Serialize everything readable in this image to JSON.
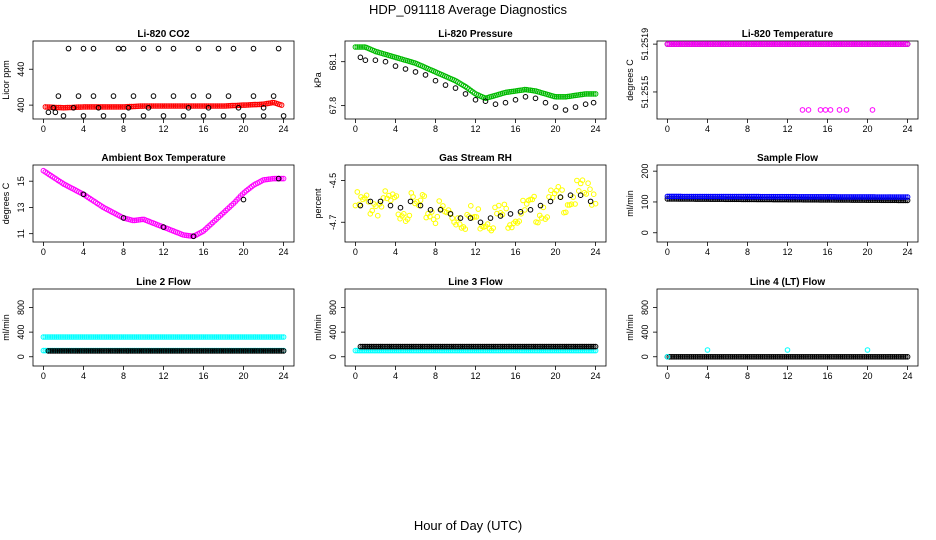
{
  "page": {
    "title": "HDP_091118  Average Diagnostics",
    "x_axis_title": "Hour of Day (UTC)"
  },
  "chart_data": [
    {
      "type": "scatter",
      "title": "Li-820 CO2",
      "ylabel": "Licor ppm",
      "xlim": [
        0,
        24
      ],
      "ylim": [
        388,
        468
      ],
      "xticks": [
        0,
        4,
        8,
        12,
        16,
        20,
        24
      ],
      "yticks": [
        400,
        440
      ],
      "series": [
        {
          "color": "#ff0000",
          "dense": true,
          "points": [
            [
              0.2,
              398
            ],
            [
              2,
              397
            ],
            [
              4,
              398
            ],
            [
              6,
              398
            ],
            [
              8,
              398
            ],
            [
              10,
              399
            ],
            [
              12,
              399
            ],
            [
              14,
              399
            ],
            [
              16,
              399
            ],
            [
              18,
              399
            ],
            [
              20,
              400
            ],
            [
              22,
              401
            ],
            [
              23,
              403
            ],
            [
              23.8,
              400
            ]
          ]
        },
        {
          "color": "#000000",
          "dense": false,
          "points": [
            [
              0.5,
              392
            ],
            [
              1.2,
              392
            ],
            [
              2.5,
              463
            ],
            [
              4,
              463
            ],
            [
              5,
              463
            ],
            [
              7.5,
              463
            ],
            [
              8,
              463
            ],
            [
              10,
              463
            ],
            [
              11.5,
              463
            ],
            [
              13,
              463
            ],
            [
              15.5,
              463
            ],
            [
              17.5,
              463
            ],
            [
              19,
              463
            ],
            [
              21,
              463
            ],
            [
              23.5,
              463
            ],
            [
              1.5,
              410
            ],
            [
              3.5,
              410
            ],
            [
              5,
              410
            ],
            [
              7,
              410
            ],
            [
              9,
              410
            ],
            [
              11,
              410
            ],
            [
              13,
              410
            ],
            [
              15,
              410
            ],
            [
              16.5,
              410
            ],
            [
              18.5,
              410
            ],
            [
              21,
              410
            ],
            [
              23,
              410
            ],
            [
              1,
              397
            ],
            [
              3,
              397
            ],
            [
              5.5,
              397
            ],
            [
              8.5,
              397
            ],
            [
              10.5,
              397
            ],
            [
              14.5,
              397
            ],
            [
              16.5,
              397
            ],
            [
              19.5,
              397
            ],
            [
              22,
              397
            ],
            [
              2,
              388
            ],
            [
              4,
              388
            ],
            [
              6,
              388
            ],
            [
              8,
              388
            ],
            [
              10,
              388
            ],
            [
              12,
              388
            ],
            [
              14,
              388
            ],
            [
              16,
              388
            ],
            [
              18,
              388
            ],
            [
              20,
              388
            ],
            [
              22,
              388
            ],
            [
              24,
              388
            ]
          ]
        }
      ]
    },
    {
      "type": "scatter",
      "title": "Li-820 Pressure",
      "ylabel": "kPa",
      "xlim": [
        0,
        24
      ],
      "ylim": [
        67.73,
        68.22
      ],
      "xticks": [
        0,
        4,
        8,
        12,
        16,
        20,
        24
      ],
      "yticks": [
        67.8,
        68.1
      ],
      "series": [
        {
          "color": "#00bb00",
          "dense": true,
          "points": [
            [
              0,
              68.2
            ],
            [
              1,
              68.2
            ],
            [
              2,
              68.17
            ],
            [
              3,
              68.15
            ],
            [
              4,
              68.13
            ],
            [
              5,
              68.11
            ],
            [
              6,
              68.09
            ],
            [
              7,
              68.06
            ],
            [
              8,
              68.03
            ],
            [
              9,
              68.0
            ],
            [
              10,
              67.97
            ],
            [
              11,
              67.93
            ],
            [
              12,
              67.88
            ],
            [
              13,
              67.85
            ],
            [
              14,
              67.87
            ],
            [
              15,
              67.89
            ],
            [
              16,
              67.9
            ],
            [
              17,
              67.91
            ],
            [
              18,
              67.9
            ],
            [
              19,
              67.88
            ],
            [
              20,
              67.86
            ],
            [
              21,
              67.86
            ],
            [
              22,
              67.87
            ],
            [
              23,
              67.88
            ],
            [
              24,
              67.88
            ]
          ]
        },
        {
          "color": "#000000",
          "dense": false,
          "points": [
            [
              0.5,
              68.13
            ],
            [
              1,
              68.11
            ],
            [
              2,
              68.11
            ],
            [
              3,
              68.1
            ],
            [
              4,
              68.07
            ],
            [
              5,
              68.05
            ],
            [
              6,
              68.03
            ],
            [
              7,
              68.01
            ],
            [
              8,
              67.97
            ],
            [
              9,
              67.94
            ],
            [
              10,
              67.92
            ],
            [
              11,
              67.88
            ],
            [
              12,
              67.84
            ],
            [
              13,
              67.83
            ],
            [
              14,
              67.81
            ],
            [
              15,
              67.82
            ],
            [
              16,
              67.84
            ],
            [
              17,
              67.86
            ],
            [
              18,
              67.85
            ],
            [
              19,
              67.82
            ],
            [
              20,
              67.79
            ],
            [
              21,
              67.77
            ],
            [
              22,
              67.79
            ],
            [
              23,
              67.81
            ],
            [
              23.8,
              67.82
            ]
          ]
        }
      ]
    },
    {
      "type": "scatter",
      "title": "Li-820 Temperature",
      "ylabel": "degrees C",
      "xlim": [
        0,
        24
      ],
      "ylim": [
        51.2513,
        51.2519
      ],
      "xticks": [
        0,
        4,
        8,
        12,
        16,
        20,
        24
      ],
      "yticks": [
        51.2515,
        51.2519
      ],
      "ytick_labels": [
        "51.2515",
        "51.2519"
      ],
      "series": [
        {
          "color": "#000000",
          "dense": true,
          "points": [
            [
              0,
              51.2519
            ],
            [
              24,
              51.2519
            ]
          ]
        },
        {
          "color": "#ff00ff",
          "dense": true,
          "points": [
            [
              0,
              51.2519
            ],
            [
              24,
              51.2519
            ]
          ]
        },
        {
          "color": "#ff00ff",
          "dense": false,
          "points": [
            [
              13.5,
              51.25135
            ],
            [
              14.1,
              51.25135
            ],
            [
              15.3,
              51.25135
            ],
            [
              15.8,
              51.25135
            ],
            [
              16.3,
              51.25135
            ],
            [
              17.2,
              51.25135
            ],
            [
              17.9,
              51.25135
            ],
            [
              20.5,
              51.25135
            ]
          ]
        }
      ]
    },
    {
      "type": "scatter",
      "title": "Ambient Box Temperature",
      "ylabel": "degrees C",
      "xlim": [
        0,
        24
      ],
      "ylim": [
        10.6,
        16.0
      ],
      "xticks": [
        0,
        4,
        8,
        12,
        16,
        20,
        24
      ],
      "yticks": [
        11,
        13,
        15
      ],
      "series": [
        {
          "color": "#ff00ff",
          "dense": true,
          "points": [
            [
              0,
              15.8
            ],
            [
              1,
              15.3
            ],
            [
              2,
              14.8
            ],
            [
              3,
              14.4
            ],
            [
              4,
              14.0
            ],
            [
              5,
              13.5
            ],
            [
              6,
              13.0
            ],
            [
              7,
              12.6
            ],
            [
              8,
              12.2
            ],
            [
              9,
              12.0
            ],
            [
              10,
              12.1
            ],
            [
              11,
              11.8
            ],
            [
              12,
              11.5
            ],
            [
              13,
              11.2
            ],
            [
              14,
              10.9
            ],
            [
              15,
              10.8
            ],
            [
              16,
              11.2
            ],
            [
              17,
              11.9
            ],
            [
              18,
              12.6
            ],
            [
              19,
              13.3
            ],
            [
              20,
              14.1
            ],
            [
              21,
              14.7
            ],
            [
              22,
              15.1
            ],
            [
              23,
              15.2
            ],
            [
              24,
              15.2
            ]
          ]
        },
        {
          "color": "#000000",
          "dense": false,
          "points": [
            [
              4,
              14.0
            ],
            [
              8,
              12.2
            ],
            [
              12,
              11.5
            ],
            [
              15,
              10.8
            ],
            [
              20,
              13.6
            ],
            [
              23.5,
              15.2
            ]
          ]
        }
      ]
    },
    {
      "type": "scatter",
      "title": "Gas Stream RH",
      "ylabel": "percent",
      "xlim": [
        0,
        24
      ],
      "ylim": [
        -4.78,
        -4.44
      ],
      "xticks": [
        0,
        4,
        8,
        12,
        16,
        20,
        24
      ],
      "yticks": [
        -4.7,
        -4.5
      ],
      "series": [
        {
          "color": "#ffff00",
          "dense": true,
          "band": 0.07,
          "points": [
            [
              0,
              -4.62
            ],
            [
              2,
              -4.61
            ],
            [
              4,
              -4.62
            ],
            [
              6,
              -4.63
            ],
            [
              8,
              -4.65
            ],
            [
              10,
              -4.67
            ],
            [
              12,
              -4.68
            ],
            [
              14,
              -4.67
            ],
            [
              16,
              -4.66
            ],
            [
              18,
              -4.64
            ],
            [
              20,
              -4.6
            ],
            [
              22,
              -4.57
            ],
            [
              24,
              -4.56
            ]
          ]
        },
        {
          "color": "#000000",
          "dense": false,
          "points": [
            [
              0.5,
              -4.62
            ],
            [
              1.5,
              -4.6
            ],
            [
              2.5,
              -4.6
            ],
            [
              3.5,
              -4.62
            ],
            [
              4.5,
              -4.63
            ],
            [
              5.5,
              -4.6
            ],
            [
              6.5,
              -4.62
            ],
            [
              7.5,
              -4.64
            ],
            [
              8.5,
              -4.64
            ],
            [
              9.5,
              -4.66
            ],
            [
              10.5,
              -4.68
            ],
            [
              11.5,
              -4.68
            ],
            [
              12.5,
              -4.7
            ],
            [
              13.5,
              -4.68
            ],
            [
              14.5,
              -4.67
            ],
            [
              15.5,
              -4.66
            ],
            [
              16.5,
              -4.65
            ],
            [
              17.5,
              -4.64
            ],
            [
              18.5,
              -4.62
            ],
            [
              19.5,
              -4.6
            ],
            [
              20.5,
              -4.58
            ],
            [
              21.5,
              -4.57
            ],
            [
              22.5,
              -4.57
            ],
            [
              23.5,
              -4.6
            ]
          ]
        }
      ]
    },
    {
      "type": "scatter",
      "title": "Sample Flow",
      "ylabel": "ml/min",
      "xlim": [
        0,
        24
      ],
      "ylim": [
        -20,
        210
      ],
      "xticks": [
        0,
        4,
        8,
        12,
        16,
        20,
        24
      ],
      "yticks": [
        0,
        100,
        200
      ],
      "series": [
        {
          "color": "#000000",
          "dense": true,
          "points": [
            [
              0,
              110
            ],
            [
              24,
              105
            ]
          ]
        },
        {
          "color": "#0000ff",
          "dense": true,
          "points": [
            [
              0,
              118
            ],
            [
              24,
              116
            ]
          ]
        }
      ]
    },
    {
      "type": "scatter",
      "title": "Line 2 Flow",
      "ylabel": "ml/min",
      "xlim": [
        0,
        24
      ],
      "ylim": [
        -100,
        1050
      ],
      "xticks": [
        0,
        4,
        8,
        12,
        16,
        20,
        24
      ],
      "yticks": [
        0,
        400,
        800
      ],
      "series": [
        {
          "color": "#00ffff",
          "dense": true,
          "points": [
            [
              0,
              320
            ],
            [
              24,
              320
            ]
          ]
        },
        {
          "color": "#00ffff",
          "dense": true,
          "points": [
            [
              0,
              100
            ],
            [
              24,
              100
            ]
          ]
        },
        {
          "color": "#000000",
          "dense": true,
          "points": [
            [
              0.5,
              95
            ],
            [
              24,
              95
            ]
          ]
        }
      ]
    },
    {
      "type": "scatter",
      "title": "Line 3 Flow",
      "ylabel": "ml/min",
      "xlim": [
        0,
        24
      ],
      "ylim": [
        -100,
        1050
      ],
      "xticks": [
        0,
        4,
        8,
        12,
        16,
        20,
        24
      ],
      "yticks": [
        0,
        400,
        800
      ],
      "series": [
        {
          "color": "#00ffff",
          "dense": true,
          "points": [
            [
              0,
              100
            ],
            [
              24,
              100
            ]
          ]
        },
        {
          "color": "#000000",
          "dense": true,
          "points": [
            [
              0.5,
              165
            ],
            [
              24,
              165
            ]
          ]
        }
      ]
    },
    {
      "type": "scatter",
      "title": "Line 4 (LT) Flow",
      "ylabel": "ml/min",
      "xlim": [
        0,
        24
      ],
      "ylim": [
        -100,
        1050
      ],
      "xticks": [
        0,
        4,
        8,
        12,
        16,
        20,
        24
      ],
      "yticks": [
        0,
        400,
        800
      ],
      "series": [
        {
          "color": "#000000",
          "dense": true,
          "points": [
            [
              0,
              0
            ],
            [
              24,
              0
            ]
          ]
        },
        {
          "color": "#00ffff",
          "dense": false,
          "points": [
            [
              0,
              0
            ],
            [
              4,
              110
            ],
            [
              12,
              110
            ],
            [
              20,
              110
            ]
          ]
        }
      ]
    }
  ]
}
